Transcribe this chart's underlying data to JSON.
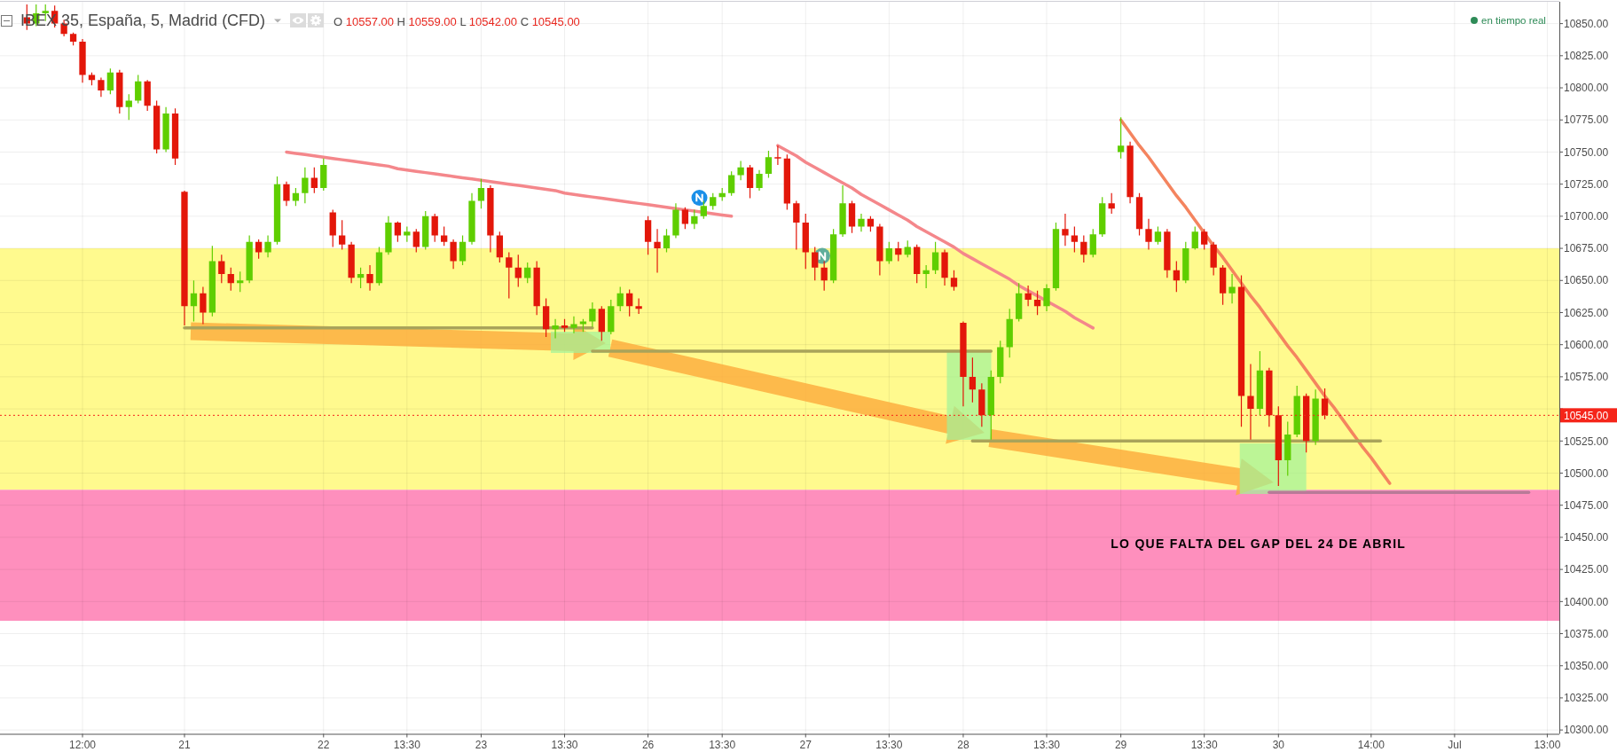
{
  "chart_data": {
    "type": "candlestick",
    "title": "IBEX 35, España, 5, Madrid (CFD)",
    "subtitle": "O 10557.00 H 10559.00 L 10542.00 C 10545.00",
    "annotations": [
      "en tiempo real"
    ],
    "categories": [
      null,
      null,
      null,
      null,
      null,
      null,
      "12:00",
      null,
      null,
      null,
      null,
      null,
      null,
      null,
      null,
      null,
      null,
      "21",
      null,
      null,
      null,
      null,
      null,
      null,
      null,
      null,
      null,
      null,
      null,
      null,
      null,
      null,
      "22",
      null,
      null,
      null,
      null,
      null,
      null,
      null,
      null,
      "13:30",
      null,
      null,
      null,
      null,
      null,
      null,
      null,
      "23",
      null,
      null,
      null,
      null,
      null,
      null,
      null,
      null,
      "13:30",
      null,
      null,
      null,
      null,
      null,
      null,
      null,
      null,
      "26",
      null,
      null,
      null,
      null,
      null,
      null,
      null,
      "13:30",
      null,
      null,
      null,
      null,
      null,
      null,
      null,
      null,
      "27",
      null,
      null,
      null,
      null,
      null,
      null,
      null,
      null,
      "13:30",
      null,
      null,
      null,
      null,
      null,
      null,
      null,
      "28",
      null,
      null,
      null,
      null,
      null,
      null,
      null,
      null,
      "13:30",
      null,
      null,
      null,
      null,
      null,
      null,
      null,
      "29",
      null,
      null,
      null,
      null,
      null,
      null,
      null,
      null,
      "13:30",
      null,
      null,
      null,
      null,
      null,
      null,
      null,
      "30",
      null,
      null,
      null,
      null,
      null,
      null,
      null,
      null,
      null,
      "14:00",
      null,
      null,
      null,
      null,
      null,
      null,
      null,
      null,
      "Jul",
      null,
      null,
      null,
      null,
      null,
      null,
      null,
      null,
      null,
      "13:00",
      null
    ],
    "ohlc": [
      [
        10855,
        10865,
        10845,
        10850
      ],
      [
        10850,
        10865,
        10848,
        10858
      ],
      [
        10858,
        10865,
        10852,
        10860
      ],
      [
        10860,
        10864,
        10847,
        10850
      ],
      [
        10850,
        10853,
        10840,
        10842
      ],
      [
        10842,
        10843,
        10833,
        10836
      ],
      [
        10836,
        10838,
        10804,
        10810
      ],
      [
        10810,
        10812,
        10802,
        10806
      ],
      [
        10806,
        10808,
        10793,
        10798
      ],
      [
        10798,
        10815,
        10795,
        10812
      ],
      [
        10812,
        10814,
        10780,
        10785
      ],
      [
        10785,
        10795,
        10775,
        10790
      ],
      [
        10790,
        10810,
        10788,
        10805
      ],
      [
        10805,
        10806,
        10782,
        10786
      ],
      [
        10786,
        10790,
        10749,
        10752
      ],
      [
        10752,
        10785,
        10750,
        10780
      ],
      [
        10780,
        10784,
        10740,
        10745
      ],
      [
        10719,
        10720,
        10615,
        10630
      ],
      [
        10630,
        10650,
        10618,
        10640
      ],
      [
        10640,
        10645,
        10616,
        10625
      ],
      [
        10625,
        10677,
        10622,
        10665
      ],
      [
        10665,
        10670,
        10648,
        10655
      ],
      [
        10655,
        10660,
        10642,
        10648
      ],
      [
        10648,
        10657,
        10641,
        10650
      ],
      [
        10650,
        10685,
        10648,
        10680
      ],
      [
        10680,
        10682,
        10667,
        10672
      ],
      [
        10672,
        10685,
        10668,
        10680
      ],
      [
        10680,
        10731,
        10678,
        10725
      ],
      [
        10725,
        10727,
        10708,
        10712
      ],
      [
        10712,
        10722,
        10708,
        10718
      ],
      [
        10718,
        10738,
        10710,
        10730
      ],
      [
        10730,
        10738,
        10718,
        10722
      ],
      [
        10722,
        10745,
        10720,
        10740
      ],
      [
        10703,
        10705,
        10676,
        10685
      ],
      [
        10685,
        10697,
        10674,
        10678
      ],
      [
        10678,
        10680,
        10648,
        10652
      ],
      [
        10652,
        10660,
        10644,
        10655
      ],
      [
        10655,
        10662,
        10642,
        10648
      ],
      [
        10648,
        10676,
        10646,
        10672
      ],
      [
        10672,
        10700,
        10670,
        10695
      ],
      [
        10695,
        10696,
        10680,
        10685
      ],
      [
        10685,
        10692,
        10680,
        10688
      ],
      [
        10688,
        10690,
        10672,
        10676
      ],
      [
        10676,
        10704,
        10674,
        10700
      ],
      [
        10700,
        10702,
        10680,
        10685
      ],
      [
        10685,
        10692,
        10677,
        10680
      ],
      [
        10680,
        10682,
        10659,
        10665
      ],
      [
        10665,
        10685,
        10662,
        10680
      ],
      [
        10680,
        10718,
        10678,
        10712
      ],
      [
        10712,
        10729,
        10706,
        10722
      ],
      [
        10722,
        10724,
        10672,
        10685
      ],
      [
        10685,
        10688,
        10664,
        10668
      ],
      [
        10668,
        10672,
        10636,
        10660
      ],
      [
        10660,
        10670,
        10645,
        10652
      ],
      [
        10652,
        10664,
        10648,
        10660
      ],
      [
        10660,
        10665,
        10623,
        10630
      ],
      [
        10630,
        10636,
        10606,
        10612
      ],
      [
        10612,
        10620,
        10605,
        10615
      ],
      [
        10615,
        10620,
        10610,
        10613
      ],
      [
        10613,
        10622,
        10609,
        10616
      ],
      [
        10616,
        10620,
        10610,
        10618
      ],
      [
        10618,
        10633,
        10614,
        10628
      ],
      [
        10628,
        10630,
        10603,
        10610
      ],
      [
        10610,
        10635,
        10608,
        10630
      ],
      [
        10630,
        10645,
        10626,
        10640
      ],
      [
        10640,
        10643,
        10622,
        10630
      ],
      [
        10630,
        10636,
        10624,
        10628
      ],
      [
        10697,
        10700,
        10670,
        10680
      ],
      [
        10680,
        10690,
        10656,
        10675
      ],
      [
        10675,
        10690,
        10672,
        10685
      ],
      [
        10685,
        10710,
        10683,
        10705
      ],
      [
        10705,
        10707,
        10690,
        10694
      ],
      [
        10694,
        10705,
        10690,
        10700
      ],
      [
        10700,
        10712,
        10698,
        10708
      ],
      [
        10708,
        10718,
        10705,
        10715
      ],
      [
        10715,
        10722,
        10712,
        10718
      ],
      [
        10718,
        10735,
        10716,
        10732
      ],
      [
        10732,
        10743,
        10728,
        10738
      ],
      [
        10738,
        10740,
        10714,
        10722
      ],
      [
        10722,
        10736,
        10720,
        10733
      ],
      [
        10733,
        10751,
        10730,
        10746
      ],
      [
        10746,
        10755,
        10740,
        10745
      ],
      [
        10745,
        10748,
        10705,
        10710
      ],
      [
        10710,
        10712,
        10674,
        10695
      ],
      [
        10695,
        10702,
        10659,
        10672
      ],
      [
        10672,
        10676,
        10650,
        10660
      ],
      [
        10660,
        10665,
        10642,
        10650
      ],
      [
        10650,
        10690,
        10648,
        10686
      ],
      [
        10686,
        10724,
        10684,
        10710
      ],
      [
        10710,
        10712,
        10687,
        10692
      ],
      [
        10692,
        10702,
        10688,
        10698
      ],
      [
        10698,
        10700,
        10688,
        10692
      ],
      [
        10692,
        10694,
        10654,
        10665
      ],
      [
        10665,
        10680,
        10663,
        10675
      ],
      [
        10675,
        10680,
        10665,
        10670
      ],
      [
        10670,
        10681,
        10668,
        10676
      ],
      [
        10676,
        10678,
        10648,
        10655
      ],
      [
        10655,
        10662,
        10644,
        10658
      ],
      [
        10658,
        10680,
        10655,
        10672
      ],
      [
        10672,
        10674,
        10646,
        10652
      ],
      [
        10652,
        10658,
        10642,
        10645
      ],
      [
        10617,
        10618,
        10552,
        10575
      ],
      [
        10575,
        10590,
        10555,
        10565
      ],
      [
        10565,
        10570,
        10536,
        10545
      ],
      [
        10545,
        10580,
        10526,
        10575
      ],
      [
        10575,
        10603,
        10570,
        10598
      ],
      [
        10598,
        10628,
        10590,
        10620
      ],
      [
        10620,
        10648,
        10618,
        10640
      ],
      [
        10640,
        10646,
        10630,
        10635
      ],
      [
        10635,
        10642,
        10623,
        10630
      ],
      [
        10630,
        10647,
        10626,
        10644
      ],
      [
        10644,
        10695,
        10642,
        10690
      ],
      [
        10690,
        10702,
        10677,
        10685
      ],
      [
        10685,
        10692,
        10672,
        10680
      ],
      [
        10680,
        10685,
        10664,
        10670
      ],
      [
        10670,
        10690,
        10668,
        10686
      ],
      [
        10686,
        10715,
        10684,
        10710
      ],
      [
        10710,
        10718,
        10702,
        10706
      ],
      [
        10750,
        10777,
        10745,
        10755
      ],
      [
        10755,
        10758,
        10710,
        10715
      ],
      [
        10715,
        10718,
        10685,
        10690
      ],
      [
        10690,
        10698,
        10674,
        10680
      ],
      [
        10680,
        10692,
        10678,
        10688
      ],
      [
        10688,
        10690,
        10652,
        10658
      ],
      [
        10658,
        10665,
        10641,
        10650
      ],
      [
        10650,
        10680,
        10648,
        10675
      ],
      [
        10675,
        10692,
        10674,
        10688
      ],
      [
        10688,
        10690,
        10674,
        10678
      ],
      [
        10678,
        10680,
        10654,
        10660
      ],
      [
        10660,
        10662,
        10631,
        10640
      ],
      [
        10640,
        10655,
        10632,
        10645
      ],
      [
        10645,
        10654,
        10536,
        10560
      ],
      [
        10560,
        10585,
        10526,
        10550
      ],
      [
        10550,
        10595,
        10545,
        10580
      ],
      [
        10580,
        10582,
        10536,
        10545
      ],
      [
        10545,
        10552,
        10490,
        10510
      ],
      [
        10510,
        10540,
        10498,
        10530
      ],
      [
        10530,
        10568,
        10528,
        10560
      ],
      [
        10560,
        10562,
        10516,
        10525
      ],
      [
        10525,
        10565,
        10522,
        10558
      ],
      [
        10558,
        10566,
        10542,
        10545
      ],
      null,
      null,
      null,
      null,
      null,
      null,
      null,
      null,
      null,
      null,
      null,
      null,
      null,
      null,
      null,
      null,
      null,
      null,
      null,
      null,
      null,
      null,
      null,
      null,
      null
    ],
    "colors": [
      "#e3170a",
      "#5fce00",
      "#5fce00",
      "#e3170a",
      "#e3170a",
      "#e3170a",
      "#e3170a",
      "#e3170a",
      "#e3170a",
      "#5fce00",
      "#e3170a",
      "#5fce00",
      "#5fce00",
      "#e3170a",
      "#e3170a",
      "#5fce00",
      "#e3170a",
      "#e3170a",
      "#5fce00",
      "#e3170a",
      "#5fce00",
      "#e3170a",
      "#e3170a",
      "#5fce00",
      "#5fce00",
      "#e3170a",
      "#5fce00",
      "#5fce00",
      "#e3170a",
      "#5fce00",
      "#5fce00",
      "#e3170a",
      "#5fce00",
      "#e3170a",
      "#e3170a",
      "#e3170a",
      "#5fce00",
      "#e3170a",
      "#5fce00",
      "#5fce00",
      "#e3170a",
      "#5fce00",
      "#e3170a",
      "#5fce00",
      "#e3170a",
      "#e3170a",
      "#e3170a",
      "#5fce00",
      "#5fce00",
      "#5fce00",
      "#e3170a",
      "#e3170a",
      "#e3170a",
      "#e3170a",
      "#5fce00",
      "#e3170a",
      "#e3170a",
      "#5fce00",
      "#e3170a",
      "#5fce00",
      "#5fce00",
      "#5fce00",
      "#e3170a",
      "#5fce00",
      "#5fce00",
      "#e3170a",
      "#e3170a",
      "#e3170a",
      "#e3170a",
      "#5fce00",
      "#5fce00",
      "#e3170a",
      "#5fce00",
      "#5fce00",
      "#5fce00",
      "#5fce00",
      "#5fce00",
      "#5fce00",
      "#e3170a",
      "#5fce00",
      "#5fce00",
      "#e3170a",
      "#e3170a",
      "#e3170a",
      "#e3170a",
      "#e3170a",
      "#e3170a",
      "#5fce00",
      "#5fce00",
      "#e3170a",
      "#5fce00",
      "#e3170a",
      "#e3170a",
      "#5fce00",
      "#e3170a",
      "#5fce00",
      "#e3170a",
      "#5fce00",
      "#5fce00",
      "#e3170a",
      "#e3170a",
      "#e3170a",
      "#e3170a",
      "#e3170a",
      "#5fce00",
      "#5fce00",
      "#5fce00",
      "#5fce00",
      "#e3170a",
      "#e3170a",
      "#5fce00",
      "#5fce00",
      "#e3170a",
      "#e3170a",
      "#e3170a",
      "#5fce00",
      "#5fce00",
      "#e3170a",
      "#5fce00",
      "#e3170a",
      "#e3170a",
      "#e3170a",
      "#5fce00",
      "#e3170a",
      "#e3170a",
      "#5fce00",
      "#5fce00",
      "#e3170a",
      "#e3170a",
      "#e3170a",
      "#5fce00",
      "#e3170a",
      "#e3170a",
      "#5fce00",
      "#e3170a",
      "#e3170a",
      "#5fce00",
      "#5fce00",
      "#e3170a",
      "#5fce00",
      "#e3170a",
      null,
      null,
      null,
      null,
      null,
      null,
      null,
      null,
      null,
      null,
      null,
      null,
      null,
      null,
      null,
      null,
      null,
      null,
      null,
      null,
      null,
      null,
      null,
      null,
      null
    ],
    "series": [
      {
        "type": "line",
        "color": "#f4878b",
        "values": [
          null,
          null,
          null,
          null,
          null,
          null,
          null,
          null,
          null,
          null,
          null,
          null,
          null,
          null,
          null,
          null,
          null,
          null,
          null,
          null,
          null,
          null,
          null,
          null,
          null,
          null,
          null,
          null,
          10750,
          10749,
          10748,
          10747,
          10746,
          10745,
          10744,
          10743,
          10742,
          10741,
          10740,
          10739,
          10737,
          10736,
          10735,
          10734,
          10733,
          10732,
          10731,
          10730,
          10729,
          10728,
          10727,
          10726,
          10725,
          10724,
          10723,
          10722,
          10721,
          10720,
          10718,
          10717,
          10716,
          10715,
          10714,
          10713,
          10712,
          10711,
          10710,
          10709,
          10708,
          10707,
          10706,
          10705,
          10704,
          10703,
          10702,
          10701,
          10700,
          null,
          null,
          null,
          null,
          null,
          null,
          null,
          null,
          null,
          null,
          null,
          null,
          null,
          null,
          null,
          null,
          null,
          null,
          null,
          null,
          null,
          null,
          null,
          null,
          null,
          null,
          null,
          null,
          null,
          null,
          null,
          null,
          null,
          null,
          null,
          null,
          null,
          null,
          null,
          null,
          null,
          null,
          null,
          null,
          null,
          null,
          null,
          null,
          null,
          null,
          null,
          null,
          null,
          null,
          null,
          null,
          null,
          null,
          null,
          null,
          null,
          null,
          null,
          null,
          null,
          null,
          null,
          null,
          null,
          null,
          null,
          null,
          null,
          null,
          null,
          null,
          null,
          null,
          null,
          null,
          null,
          null,
          null,
          null,
          null,
          null,
          null,
          null,
          null
        ]
      },
      {
        "type": "line",
        "color": "#f4878b",
        "values": [
          null,
          null,
          null,
          null,
          null,
          null,
          null,
          null,
          null,
          null,
          null,
          null,
          null,
          null,
          null,
          null,
          null,
          null,
          null,
          null,
          null,
          null,
          null,
          null,
          null,
          null,
          null,
          null,
          null,
          null,
          null,
          null,
          null,
          null,
          null,
          null,
          null,
          null,
          null,
          null,
          null,
          null,
          null,
          null,
          null,
          null,
          null,
          null,
          null,
          null,
          null,
          null,
          null,
          null,
          null,
          null,
          null,
          null,
          null,
          null,
          null,
          null,
          null,
          null,
          null,
          null,
          null,
          null,
          null,
          null,
          null,
          null,
          null,
          null,
          null,
          null,
          null,
          null,
          null,
          null,
          null,
          10755,
          10751,
          10747,
          10742,
          10738,
          10734,
          10730,
          10726,
          10722,
          10717,
          10713,
          10709,
          10705,
          10701,
          10697,
          10692,
          10688,
          10684,
          10680,
          10676,
          10671,
          10667,
          10663,
          10659,
          10655,
          10651,
          10646,
          10642,
          10638,
          10634,
          10630,
          10626,
          10621,
          10617,
          10613,
          null,
          null,
          null,
          null,
          null,
          null,
          null,
          null,
          null,
          null,
          null,
          null,
          null,
          null,
          null,
          null,
          null,
          null,
          null,
          null,
          null,
          null,
          null,
          null,
          null,
          null,
          null,
          null,
          null,
          null,
          null,
          null,
          null,
          null,
          null,
          null,
          null,
          null,
          null,
          null,
          null,
          null,
          null,
          null,
          null,
          null,
          null,
          null,
          null,
          null
        ]
      },
      {
        "type": "line",
        "color": "#f4845f",
        "values": [
          null,
          null,
          null,
          null,
          null,
          null,
          null,
          null,
          null,
          null,
          null,
          null,
          null,
          null,
          null,
          null,
          null,
          null,
          null,
          null,
          null,
          null,
          null,
          null,
          null,
          null,
          null,
          null,
          null,
          null,
          null,
          null,
          null,
          null,
          null,
          null,
          null,
          null,
          null,
          null,
          null,
          null,
          null,
          null,
          null,
          null,
          null,
          null,
          null,
          null,
          null,
          null,
          null,
          null,
          null,
          null,
          null,
          null,
          null,
          null,
          null,
          null,
          null,
          null,
          null,
          null,
          null,
          null,
          null,
          null,
          null,
          null,
          null,
          null,
          null,
          null,
          null,
          null,
          null,
          null,
          null,
          null,
          null,
          null,
          null,
          null,
          null,
          null,
          null,
          null,
          null,
          null,
          null,
          null,
          null,
          null,
          null,
          null,
          null,
          null,
          null,
          null,
          null,
          null,
          null,
          null,
          null,
          null,
          null,
          null,
          null,
          null,
          null,
          null,
          null,
          null,
          null,
          null,
          10775,
          10765,
          10755,
          10746,
          10736,
          10726,
          10716,
          10707,
          10697,
          10687,
          10677,
          10668,
          10658,
          10648,
          10638,
          10629,
          10619,
          10609,
          10599,
          10590,
          10580,
          10570,
          10560,
          10551,
          10541,
          10531,
          10521,
          10512,
          10502,
          10492,
          null,
          null,
          null,
          null,
          null,
          null,
          null,
          null,
          null,
          null,
          null,
          null,
          null,
          null,
          null,
          null,
          null,
          null
        ]
      },
      {
        "type": "line",
        "color": "#a9a35a",
        "values": [
          null,
          null,
          null,
          null,
          null,
          null,
          null,
          null,
          null,
          null,
          null,
          null,
          null,
          null,
          null,
          null,
          null,
          10613,
          10613,
          10613,
          10613,
          10613,
          10613,
          10613,
          10613,
          10613,
          10613,
          10613,
          10613,
          10613,
          10613,
          10613,
          10613,
          10613,
          10613,
          10613,
          10613,
          10613,
          10613,
          10613,
          10613,
          10613,
          10613,
          10613,
          10613,
          10613,
          10613,
          10613,
          10613,
          10613,
          10613,
          10613,
          10613,
          10613,
          10613,
          10613,
          10613,
          10613,
          10613,
          10613,
          10613,
          10613,
          null,
          null,
          null,
          null,
          null,
          null,
          null,
          null,
          null,
          null,
          null,
          null,
          null,
          null,
          null,
          null,
          null,
          null,
          null,
          null,
          null,
          null,
          null,
          null,
          null,
          null,
          null,
          null,
          null,
          null,
          null,
          null,
          null,
          null,
          null,
          null,
          null,
          null,
          null,
          null,
          null,
          null,
          null,
          null,
          null,
          null,
          null,
          null,
          null,
          null,
          null,
          null,
          null,
          null,
          null,
          null,
          null,
          null,
          null,
          null,
          null,
          null,
          null,
          null,
          null,
          null,
          null,
          null,
          null,
          null,
          null,
          null,
          null,
          null,
          null,
          null,
          null,
          null,
          null,
          null,
          null,
          null,
          null,
          null,
          null,
          null,
          null,
          null,
          null,
          null,
          null,
          null,
          null,
          null,
          null,
          null,
          null,
          null,
          null,
          null,
          null,
          null,
          null,
          null
        ]
      },
      {
        "type": "line",
        "color": "#a9a35a",
        "values": [
          null,
          null,
          null,
          null,
          null,
          null,
          null,
          null,
          null,
          null,
          null,
          null,
          null,
          null,
          null,
          null,
          null,
          null,
          null,
          null,
          null,
          null,
          null,
          null,
          null,
          null,
          null,
          null,
          null,
          null,
          null,
          null,
          null,
          null,
          null,
          null,
          null,
          null,
          null,
          null,
          null,
          null,
          null,
          null,
          null,
          null,
          null,
          null,
          null,
          null,
          null,
          null,
          null,
          null,
          null,
          null,
          null,
          null,
          null,
          null,
          null,
          10595,
          10595,
          10595,
          10595,
          10595,
          10595,
          10595,
          10595,
          10595,
          10595,
          10595,
          10595,
          10595,
          10595,
          10595,
          10595,
          10595,
          10595,
          10595,
          10595,
          10595,
          10595,
          10595,
          10595,
          10595,
          10595,
          10595,
          10595,
          10595,
          10595,
          10595,
          10595,
          10595,
          10595,
          10595,
          10595,
          10595,
          10595,
          10595,
          10595,
          10595,
          10595,
          10595,
          10595,
          null,
          null,
          null,
          null,
          null,
          null,
          null,
          null,
          null,
          null,
          null,
          null,
          null,
          null,
          null,
          null,
          null,
          null,
          null,
          null,
          null,
          null,
          null,
          null,
          null,
          null,
          null,
          null,
          null,
          null,
          null,
          null,
          null,
          null,
          null,
          null,
          null,
          null,
          null,
          null,
          null,
          null,
          null,
          null,
          null,
          null,
          null,
          null,
          null,
          null,
          null,
          null,
          null,
          null,
          null,
          null,
          null,
          null,
          null,
          null,
          null
        ]
      },
      {
        "type": "line",
        "color": "#a9a35a",
        "values": [
          null,
          null,
          null,
          null,
          null,
          null,
          null,
          null,
          null,
          null,
          null,
          null,
          null,
          null,
          null,
          null,
          null,
          null,
          null,
          null,
          null,
          null,
          null,
          null,
          null,
          null,
          null,
          null,
          null,
          null,
          null,
          null,
          null,
          null,
          null,
          null,
          null,
          null,
          null,
          null,
          null,
          null,
          null,
          null,
          null,
          null,
          null,
          null,
          null,
          null,
          null,
          null,
          null,
          null,
          null,
          null,
          null,
          null,
          null,
          null,
          null,
          null,
          null,
          null,
          null,
          null,
          null,
          null,
          null,
          null,
          null,
          null,
          null,
          null,
          null,
          null,
          null,
          null,
          null,
          null,
          null,
          null,
          null,
          null,
          null,
          null,
          null,
          null,
          null,
          null,
          null,
          null,
          null,
          null,
          null,
          null,
          null,
          null,
          null,
          null,
          null,
          null,
          10525,
          10525,
          10525,
          10525,
          10525,
          10525,
          10525,
          10525,
          10525,
          10525,
          10525,
          10525,
          10525,
          10525,
          10525,
          10525,
          10525,
          10525,
          10525,
          10525,
          10525,
          10525,
          10525,
          10525,
          10525,
          10525,
          10525,
          10525,
          10525,
          10525,
          10525,
          10525,
          10525,
          10525,
          10525,
          10525,
          10525,
          10525,
          10525,
          10525,
          10525,
          10525,
          10525,
          10525,
          10525,
          null,
          null,
          null,
          null,
          null,
          null,
          null,
          null,
          null,
          null,
          null,
          null,
          null,
          null,
          null,
          null,
          null,
          null,
          null
        ]
      },
      {
        "type": "line",
        "color": "#b97a98",
        "values": [
          null,
          null,
          null,
          null,
          null,
          null,
          null,
          null,
          null,
          null,
          null,
          null,
          null,
          null,
          null,
          null,
          null,
          null,
          null,
          null,
          null,
          null,
          null,
          null,
          null,
          null,
          null,
          null,
          null,
          null,
          null,
          null,
          null,
          null,
          null,
          null,
          null,
          null,
          null,
          null,
          null,
          null,
          null,
          null,
          null,
          null,
          null,
          null,
          null,
          null,
          null,
          null,
          null,
          null,
          null,
          null,
          null,
          null,
          null,
          null,
          null,
          null,
          null,
          null,
          null,
          null,
          null,
          null,
          null,
          null,
          null,
          null,
          null,
          null,
          null,
          null,
          null,
          null,
          null,
          null,
          null,
          null,
          null,
          null,
          null,
          null,
          null,
          null,
          null,
          null,
          null,
          null,
          null,
          null,
          null,
          null,
          null,
          null,
          null,
          null,
          null,
          null,
          null,
          null,
          null,
          null,
          null,
          null,
          null,
          null,
          null,
          null,
          null,
          null,
          null,
          null,
          null,
          null,
          null,
          null,
          null,
          null,
          null,
          null,
          null,
          null,
          null,
          null,
          null,
          null,
          null,
          null,
          null,
          null,
          10485,
          10485,
          10485,
          10485,
          10485,
          10485,
          10485,
          10485,
          10485,
          10485,
          10485,
          10485,
          10485,
          10485,
          10485,
          10485,
          10485,
          10485,
          10485,
          10485,
          10485,
          10485,
          10485,
          10485,
          10485,
          10485,
          10485,
          10485,
          10485,
          null,
          null,
          null
        ]
      }
    ],
    "bands": [
      {
        "axis": "y",
        "from": 10487,
        "to": 10675,
        "color": "#fffa8e"
      },
      {
        "axis": "y",
        "from": 10385,
        "to": 10487,
        "color": "#fe8fbd",
        "label": "LO QUE FALTA DEL GAP DEL 24 DE ABRIL"
      }
    ],
    "ref_lines": [
      {
        "axis": "y",
        "value": 10545,
        "label": "10545.00",
        "color": "#f5251a",
        "line_style": "dotted"
      }
    ],
    "ylim": [
      10297,
      10867
    ],
    "yticks": [
      {
        "value": 10300,
        "label": "10300.00"
      },
      {
        "value": 10325,
        "label": "10325.00"
      },
      {
        "value": 10350,
        "label": "10350.00"
      },
      {
        "value": 10375,
        "label": "10375.00"
      },
      {
        "value": 10400,
        "label": "10400.00"
      },
      {
        "value": 10425,
        "label": "10425.00"
      },
      {
        "value": 10450,
        "label": "10450.00"
      },
      {
        "value": 10475,
        "label": "10475.00"
      },
      {
        "value": 10500,
        "label": "10500.00"
      },
      {
        "value": 10525,
        "label": "10525.00"
      },
      {
        "value": 10550,
        "label": null
      },
      {
        "value": 10575,
        "label": "10575.00"
      },
      {
        "value": 10600,
        "label": "10600.00"
      },
      {
        "value": 10625,
        "label": "10625.00"
      },
      {
        "value": 10650,
        "label": "10650.00"
      },
      {
        "value": 10675,
        "label": "10675.00"
      },
      {
        "value": 10700,
        "label": "10700.00"
      },
      {
        "value": 10725,
        "label": "10725.00"
      },
      {
        "value": 10750,
        "label": "10750.00"
      },
      {
        "value": 10775,
        "label": "10775.00"
      },
      {
        "value": 10800,
        "label": "10800.00"
      },
      {
        "value": 10825,
        "label": "10825.00"
      },
      {
        "value": 10850,
        "label": "10850.00"
      }
    ],
    "grid": true
  }
}
